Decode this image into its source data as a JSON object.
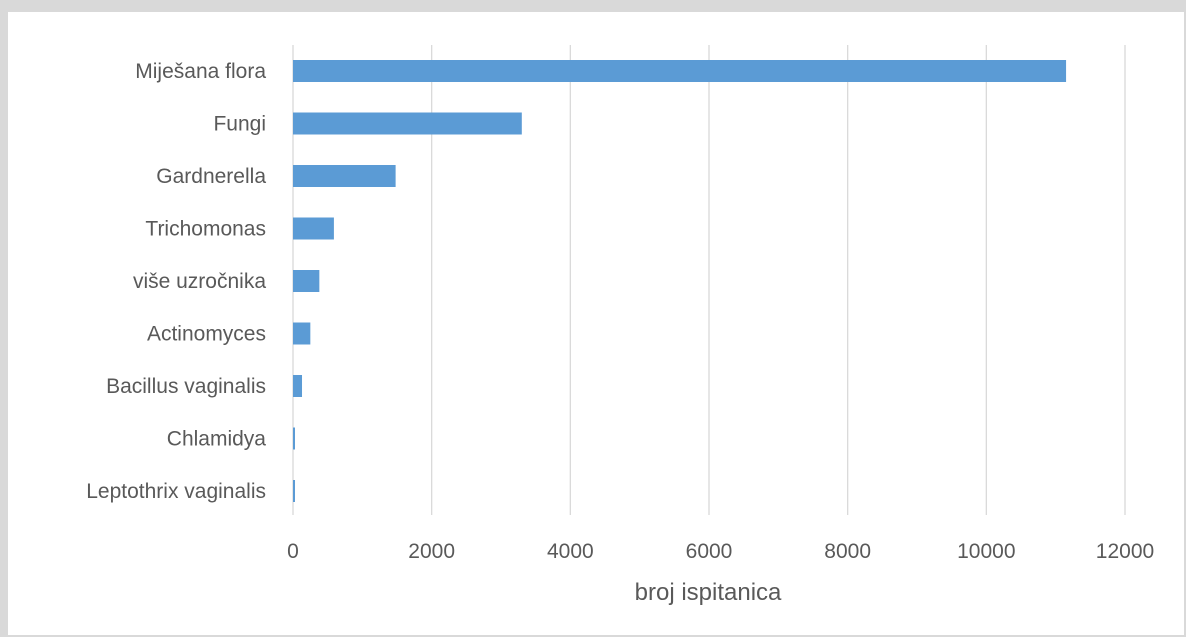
{
  "chart_data": {
    "type": "bar",
    "orientation": "horizontal",
    "categories": [
      "Miješana flora",
      "Fungi",
      "Gardnerella",
      "Trichomonas",
      "više uzročnika",
      "Actinomyces",
      "Bacillus vaginalis",
      "Chlamidya",
      "Leptothrix vaginalis"
    ],
    "values": [
      11150,
      3300,
      1480,
      590,
      380,
      250,
      130,
      20,
      20
    ],
    "xlabel": "broj ispitanica",
    "ylabel": "",
    "xlim": [
      0,
      12000
    ],
    "xticks": [
      "0",
      "2000",
      "4000",
      "6000",
      "8000",
      "10000",
      "12000"
    ],
    "grid": "vertical",
    "legend": "none",
    "bar_color": "#5b9bd5",
    "grid_color": "#d9d9d9"
  }
}
